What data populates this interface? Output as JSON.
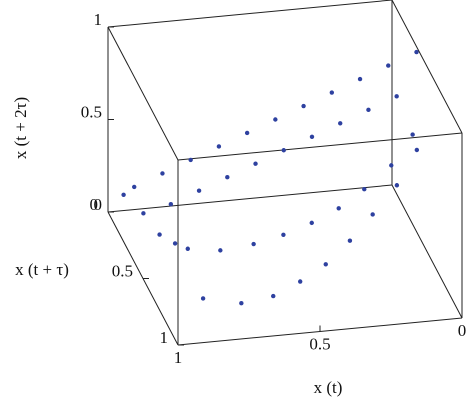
{
  "chart_data": {
    "type": "scatter3d",
    "x_label": "x (t)",
    "y_label": "x (t + τ)",
    "z_label": "x (t + 2τ)",
    "xlim": [
      0,
      1
    ],
    "ylim": [
      0,
      1
    ],
    "zlim": [
      0,
      1
    ],
    "xticks": [
      0,
      0.5,
      1
    ],
    "yticks": [
      0,
      0.5,
      1
    ],
    "zticks": [
      0,
      0.5,
      1
    ],
    "series": [
      {
        "color": "#2e41a0",
        "x": [
          0.92,
          0.828,
          0.736,
          0.644,
          0.552,
          0.46,
          0.368,
          0.276,
          0.184,
          0.092,
          0.0,
          0.828,
          0.736,
          0.644,
          0.552,
          0.46,
          0.368,
          0.276,
          0.184,
          0.092,
          0.83,
          0.74,
          0.64,
          0.55,
          0.46,
          0.37,
          0.28,
          0.18,
          0.09,
          0.85,
          0.74,
          0.64,
          0.55,
          0.46,
          0.37,
          0.28,
          0.18,
          0.09,
          0.95,
          0.9,
          0.88,
          0.85
        ],
        "y": [
          0.05,
          0.08,
          0.11,
          0.14,
          0.17,
          0.2,
          0.23,
          0.26,
          0.29,
          0.32,
          0.35,
          0.2,
          0.23,
          0.26,
          0.29,
          0.32,
          0.35,
          0.38,
          0.41,
          0.44,
          0.45,
          0.55,
          0.62,
          0.68,
          0.72,
          0.74,
          0.74,
          0.72,
          0.66,
          0.75,
          0.85,
          0.9,
          0.92,
          0.92,
          0.9,
          0.86,
          0.8,
          0.72,
          0.02,
          0.1,
          0.25,
          0.35
        ],
        "z": [
          0.16,
          0.241,
          0.322,
          0.403,
          0.484,
          0.565,
          0.646,
          0.727,
          0.808,
          0.889,
          0.97,
          0.161,
          0.242,
          0.323,
          0.404,
          0.485,
          0.566,
          0.647,
          0.728,
          0.809,
          0.1,
          0.15,
          0.22,
          0.3,
          0.38,
          0.46,
          0.55,
          0.65,
          0.76,
          0.05,
          0.08,
          0.14,
          0.22,
          0.3,
          0.4,
          0.5,
          0.6,
          0.72,
          0.1,
          0.05,
          0.04,
          0.06
        ]
      }
    ]
  }
}
